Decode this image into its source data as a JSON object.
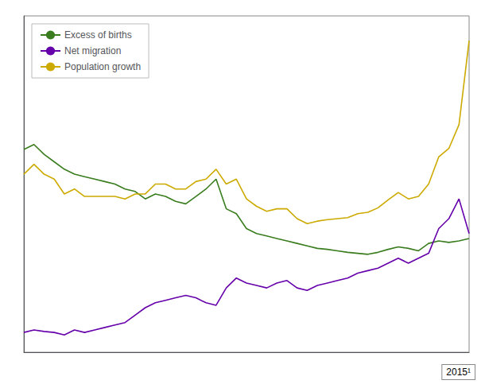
{
  "chart_data": {
    "type": "line",
    "x": [
      1971,
      1972,
      1973,
      1974,
      1975,
      1976,
      1977,
      1978,
      1979,
      1980,
      1981,
      1982,
      1983,
      1984,
      1985,
      1986,
      1987,
      1988,
      1989,
      1990,
      1991,
      1992,
      1993,
      1994,
      1995,
      1996,
      1997,
      1998,
      1999,
      2000,
      2001,
      2002,
      2003,
      2004,
      2005,
      2006,
      2007,
      2008,
      2009,
      2010,
      2011,
      2012,
      2013,
      2014,
      2015
    ],
    "series": [
      {
        "name": "Excess of births",
        "color": "#3a7d1e",
        "values": [
          33000,
          34000,
          32000,
          30500,
          29000,
          28000,
          27500,
          27000,
          26500,
          26000,
          25000,
          24500,
          23000,
          24000,
          23500,
          22500,
          22000,
          23500,
          25000,
          27000,
          21000,
          20000,
          17000,
          16000,
          15500,
          15000,
          14500,
          14000,
          13500,
          13000,
          12800,
          12500,
          12200,
          12000,
          11800,
          12200,
          12800,
          13300,
          13000,
          12500,
          14000,
          14500,
          14200,
          14500,
          15000
        ]
      },
      {
        "name": "Net migration",
        "color": "#6600aa",
        "values": [
          -4000,
          -3500,
          -3800,
          -4000,
          -4500,
          -3500,
          -4000,
          -3500,
          -3000,
          -2500,
          -2000,
          -500,
          1000,
          2000,
          2500,
          3000,
          3500,
          3000,
          2000,
          1500,
          5000,
          7000,
          6000,
          5500,
          5000,
          6000,
          6500,
          5000,
          4500,
          5500,
          6000,
          6500,
          7000,
          8000,
          8500,
          9000,
          10000,
          11000,
          10000,
          11000,
          12000,
          17000,
          19000,
          23000,
          16000
        ]
      },
      {
        "name": "Population growth",
        "color": "#ccaa00",
        "values": [
          28000,
          30000,
          28000,
          27000,
          24000,
          25000,
          23500,
          23500,
          23500,
          23500,
          23000,
          24000,
          24000,
          26000,
          26000,
          25000,
          25000,
          26500,
          27000,
          29000,
          26000,
          27000,
          23000,
          21500,
          20500,
          21000,
          21000,
          19000,
          18000,
          18500,
          18800,
          19000,
          19200,
          20000,
          20300,
          21200,
          22800,
          24300,
          23000,
          23500,
          26000,
          31500,
          33200,
          38000,
          55000
        ]
      }
    ],
    "xlim": [
      1971,
      2015
    ],
    "ylim": [
      -8000,
      60000
    ],
    "tick_labels": false,
    "grid": false,
    "legend": "upper left",
    "annotation": "2015¹"
  }
}
